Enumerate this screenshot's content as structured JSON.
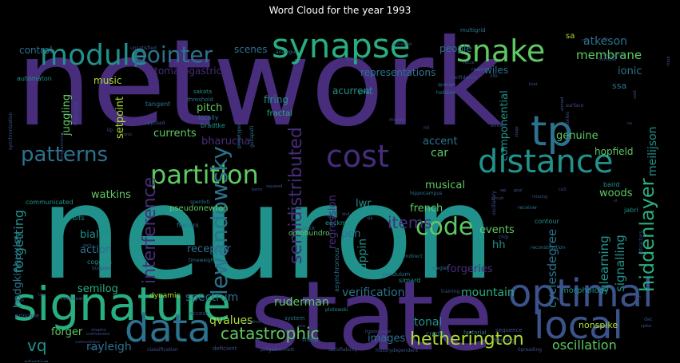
{
  "title": "Word Cloud for the year 1993",
  "palette": {
    "purple": "#472d7b",
    "darkblue": "#3b528b",
    "blue": "#2c728e",
    "teal": "#21918c",
    "green": "#28ae80",
    "lightgreen": "#5ec962",
    "yellowgreen": "#addc30",
    "dark": "#3e2b5e"
  },
  "words": [
    {
      "text": "network",
      "color": "purple",
      "weight": 100
    },
    {
      "text": "neuron",
      "color": "teal",
      "weight": 98
    },
    {
      "text": "state",
      "color": "purple",
      "weight": 72
    },
    {
      "text": "signature",
      "color": "green",
      "weight": 40
    },
    {
      "text": "optimal",
      "color": "darkblue",
      "weight": 36
    },
    {
      "text": "data",
      "color": "blue",
      "weight": 35
    },
    {
      "text": "local",
      "color": "darkblue",
      "weight": 34
    },
    {
      "text": "synapse",
      "color": "green",
      "weight": 30
    },
    {
      "text": "snake",
      "color": "lightgreen",
      "weight": 27
    },
    {
      "text": "tp",
      "color": "blue",
      "weight": 30
    },
    {
      "text": "module",
      "color": "teal",
      "weight": 26
    },
    {
      "text": "pointer",
      "color": "blue",
      "weight": 23
    },
    {
      "text": "distance",
      "color": "teal",
      "weight": 25
    },
    {
      "text": "cost",
      "color": "purple",
      "weight": 24
    },
    {
      "text": "partition",
      "color": "lightgreen",
      "weight": 21
    },
    {
      "text": "patterns",
      "color": "blue",
      "weight": 20
    },
    {
      "text": "code",
      "color": "lightgreen",
      "weight": 21
    },
    {
      "text": "lewandowsky",
      "color": "blue",
      "weight": 18
    },
    {
      "text": "hiddenlayer",
      "color": "green",
      "weight": 17
    },
    {
      "text": "semidistributed",
      "color": "purple",
      "weight": 16
    },
    {
      "text": "hetherington",
      "color": "yellowgreen",
      "weight": 16
    },
    {
      "text": "catastrophic",
      "color": "lightgreen",
      "weight": 15
    },
    {
      "text": "interference",
      "color": "purple",
      "weight": 15
    },
    {
      "text": "vq",
      "color": "teal",
      "weight": 14
    },
    {
      "text": "items",
      "color": "purple",
      "weight": 14
    },
    {
      "text": "forgetting",
      "color": "teal",
      "weight": 12
    },
    {
      "text": "oscillation",
      "color": "lightgreen",
      "weight": 11
    },
    {
      "text": "cyclesdegree",
      "color": "blue",
      "weight": 11
    },
    {
      "text": "signalling",
      "color": "teal",
      "weight": 11
    },
    {
      "text": "qlearning",
      "color": "teal",
      "weight": 11
    },
    {
      "text": "hodgkinhuxley",
      "color": "blue",
      "weight": 10
    },
    {
      "text": "membrane",
      "color": "lightgreen",
      "weight": 10
    },
    {
      "text": "atkeson",
      "color": "blue",
      "weight": 10
    },
    {
      "text": "ionic",
      "color": "blue",
      "weight": 10
    },
    {
      "text": "meilijson",
      "color": "teal",
      "weight": 10
    },
    {
      "text": "rayleigh",
      "color": "blue",
      "weight": 10
    },
    {
      "text": "qvalues",
      "color": "yellowgreen",
      "weight": 10
    },
    {
      "text": "spectrum",
      "color": "blue",
      "weight": 10
    },
    {
      "text": "ruderman",
      "color": "lightgreen",
      "weight": 10
    },
    {
      "text": "verification",
      "color": "blue",
      "weight": 10
    },
    {
      "text": "mountain",
      "color": "green",
      "weight": 10
    },
    {
      "text": "tonal",
      "color": "teal",
      "weight": 10
    },
    {
      "text": "images",
      "color": "blue",
      "weight": 9
    },
    {
      "text": "forger",
      "color": "lightgreen",
      "weight": 9
    },
    {
      "text": "forgeries",
      "color": "purple",
      "weight": 9
    },
    {
      "text": "bialek",
      "color": "teal",
      "weight": 9
    },
    {
      "text": "action",
      "color": "blue",
      "weight": 9
    },
    {
      "text": "receptor",
      "color": "blue",
      "weight": 9
    },
    {
      "text": "semilog",
      "color": "green",
      "weight": 9
    },
    {
      "text": "events",
      "color": "lightgreen",
      "weight": 9
    },
    {
      "text": "hh",
      "color": "teal",
      "weight": 9
    },
    {
      "text": "pen",
      "color": "blue",
      "weight": 9
    },
    {
      "text": "lwr",
      "color": "teal",
      "weight": 8
    },
    {
      "text": "ruppin",
      "color": "teal",
      "weight": 8
    },
    {
      "text": "regression",
      "color": "purple",
      "weight": 8
    },
    {
      "text": "french",
      "color": "lightgreen",
      "weight": 9
    },
    {
      "text": "musical",
      "color": "lightgreen",
      "weight": 8
    },
    {
      "text": "woods",
      "color": "lightgreen",
      "weight": 8
    },
    {
      "text": "componential",
      "color": "teal",
      "weight": 9
    },
    {
      "text": "car",
      "color": "lightgreen",
      "weight": 9
    },
    {
      "text": "accent",
      "color": "blue",
      "weight": 9
    },
    {
      "text": "genuine",
      "color": "lightgreen",
      "weight": 8
    },
    {
      "text": "hopfield",
      "color": "lightgreen",
      "weight": 8
    },
    {
      "text": "watkins",
      "color": "lightgreen",
      "weight": 9
    },
    {
      "text": "juggling",
      "color": "lightgreen",
      "weight": 9
    },
    {
      "text": "currents",
      "color": "lightgreen",
      "weight": 9
    },
    {
      "text": "setpoint",
      "color": "yellowgreen",
      "weight": 9
    },
    {
      "text": "pitch",
      "color": "lightgreen",
      "weight": 9
    },
    {
      "text": "bharucha",
      "color": "purple",
      "weight": 9
    },
    {
      "text": "firing",
      "color": "teal",
      "weight": 8
    },
    {
      "text": "scenes",
      "color": "blue",
      "weight": 8
    },
    {
      "text": "music",
      "color": "yellowgreen",
      "weight": 8
    },
    {
      "text": "stomatogastric",
      "color": "purple",
      "weight": 8
    },
    {
      "text": "representations",
      "color": "blue",
      "weight": 8
    },
    {
      "text": "acurrent",
      "color": "teal",
      "weight": 8
    },
    {
      "text": "people",
      "color": "blue",
      "weight": 8
    },
    {
      "text": "wiles",
      "color": "blue",
      "weight": 8
    },
    {
      "text": "control",
      "color": "blue",
      "weight": 8
    },
    {
      "text": "sa",
      "color": "yellowgreen",
      "weight": 8
    },
    {
      "text": "ssa",
      "color": "blue",
      "weight": 8
    },
    {
      "text": "pseudonewton",
      "color": "lightgreen",
      "weight": 7
    },
    {
      "text": "fractal",
      "color": "green",
      "weight": 7
    },
    {
      "text": "dynamic",
      "color": "yellowgreen",
      "weight": 7
    },
    {
      "text": "nonspike",
      "color": "yellowgreen",
      "weight": 8
    },
    {
      "text": "morphology",
      "color": "teal",
      "weight": 7
    },
    {
      "text": "contour",
      "color": "teal",
      "weight": 6
    },
    {
      "text": "baird",
      "color": "teal",
      "weight": 6
    },
    {
      "text": "jabri",
      "color": "teal",
      "weight": 6
    },
    {
      "text": "coggins",
      "color": "teal",
      "weight": 6
    },
    {
      "text": "omohundro",
      "color": "lightgreen",
      "weight": 6
    },
    {
      "text": "eeckman",
      "color": "teal",
      "weight": 6
    },
    {
      "text": "simard",
      "color": "teal",
      "weight": 6
    },
    {
      "text": "credit",
      "color": "blue",
      "weight": 6
    },
    {
      "text": "tresp",
      "color": "blue",
      "weight": 6
    },
    {
      "text": "pwi",
      "color": "teal",
      "weight": 6
    },
    {
      "text": "tangent",
      "color": "blue",
      "weight": 6
    },
    {
      "text": "communicated",
      "color": "teal",
      "weight": 6
    },
    {
      "text": "bits",
      "color": "teal",
      "weight": 6
    },
    {
      "text": "bradtke",
      "color": "teal",
      "weight": 6
    },
    {
      "text": "fraconi",
      "color": "blue",
      "weight": 6
    },
    {
      "text": "locally",
      "color": "blue",
      "weight": 6
    },
    {
      "text": "sakata",
      "color": "teal",
      "weight": 5
    },
    {
      "text": "threshold",
      "color": "blue",
      "weight": 5
    },
    {
      "text": "automaton",
      "color": "teal",
      "weight": 6
    },
    {
      "text": "unsatisfied",
      "color": "darkblue",
      "weight": 4
    },
    {
      "text": "multigrid",
      "color": "blue",
      "weight": 5
    },
    {
      "text": "confidence",
      "color": "darkblue",
      "weight": 5
    },
    {
      "text": "asynchronous",
      "color": "blue",
      "weight": 6
    },
    {
      "text": "pendulum",
      "color": "blue",
      "weight": 5
    },
    {
      "text": "factorial",
      "color": "blue",
      "weight": 5
    },
    {
      "text": "filtering",
      "color": "darkblue",
      "weight": 5
    },
    {
      "text": "sequence",
      "color": "darkblue",
      "weight": 5
    },
    {
      "text": "adaptive",
      "color": "blue",
      "weight": 5
    },
    {
      "text": "classification",
      "color": "darkblue",
      "weight": 5
    },
    {
      "text": "deficient",
      "color": "darkblue",
      "weight": 5
    },
    {
      "text": "prilgelbennett",
      "color": "darkblue",
      "weight": 5
    },
    {
      "text": "satisfiability",
      "color": "darkblue",
      "weight": 4
    },
    {
      "text": "historydependent",
      "color": "darkblue",
      "weight": 5
    },
    {
      "text": "lipreading",
      "color": "darkblue",
      "weight": 5
    },
    {
      "text": "hippocampal",
      "color": "darkblue",
      "weight": 4
    },
    {
      "text": "plutowski",
      "color": "teal",
      "weight": 4
    },
    {
      "text": "access",
      "color": "darkblue",
      "weight": 5
    },
    {
      "text": "system",
      "color": "blue",
      "weight": 5
    },
    {
      "text": "principle",
      "color": "darkblue",
      "weight": 5
    },
    {
      "text": "nonlinear",
      "color": "darkblue",
      "weight": 4
    },
    {
      "text": "timeweighted",
      "color": "blue",
      "weight": 4
    },
    {
      "text": "sperduti",
      "color": "blue",
      "weight": 4
    },
    {
      "text": "bregler",
      "color": "blue",
      "weight": 4
    },
    {
      "text": "indirect",
      "color": "blue",
      "weight": 4
    },
    {
      "text": "gluck",
      "color": "blue",
      "weight": 4
    },
    {
      "text": "reconstruction",
      "color": "blue",
      "weight": 4
    },
    {
      "text": "receiver",
      "color": "blue",
      "weight": 4
    },
    {
      "text": "hippocampus",
      "color": "blue",
      "weight": 4
    },
    {
      "text": "queries",
      "color": "blue",
      "weight": 4
    },
    {
      "text": "hebbian",
      "color": "blue",
      "weight": 4
    },
    {
      "text": "raam",
      "color": "blue",
      "weight": 4
    },
    {
      "text": "synchronization",
      "color": "darkblue",
      "weight": 4
    },
    {
      "text": "trajectory",
      "color": "darkblue",
      "weight": 4
    },
    {
      "text": "programming",
      "color": "darkblue",
      "weight": 4
    },
    {
      "text": "elman",
      "color": "darkblue",
      "weight": 4
    },
    {
      "text": "gullapalli",
      "color": "blue",
      "weight": 4
    },
    {
      "text": "prototypes",
      "color": "blue",
      "weight": 4
    },
    {
      "text": "analogue",
      "color": "blue",
      "weight": 5
    },
    {
      "text": "attractors",
      "color": "darkblue",
      "weight": 4
    },
    {
      "text": "oscillatory",
      "color": "darkblue",
      "weight": 4
    },
    {
      "text": "chip",
      "color": "darkblue",
      "weight": 4
    },
    {
      "text": "training",
      "color": "darkblue",
      "weight": 4
    },
    {
      "text": "mume",
      "color": "darkblue",
      "weight": 4
    },
    {
      "text": "nil",
      "color": "darkblue",
      "weight": 4
    },
    {
      "text": "burgess",
      "color": "darkblue",
      "weight": 4
    },
    {
      "text": "surface",
      "color": "darkblue",
      "weight": 4
    },
    {
      "text": "trajectories",
      "color": "darkblue",
      "weight": 4
    },
    {
      "text": "kirkpatrick",
      "color": "darkblue",
      "weight": 4
    },
    {
      "text": "formulae",
      "color": "darkblue",
      "weight": 4
    },
    {
      "text": "input",
      "color": "darkblue",
      "weight": 4
    },
    {
      "text": "dac",
      "color": "darkblue",
      "weight": 4
    },
    {
      "text": "spike",
      "color": "darkblue",
      "weight": 4
    },
    {
      "text": "ahmad",
      "color": "darkblue",
      "weight": 4
    },
    {
      "text": "stage",
      "color": "darkblue",
      "weight": 4
    },
    {
      "text": "recce",
      "color": "darkblue",
      "weight": 4
    },
    {
      "text": "zn",
      "color": "darkblue",
      "weight": 4
    },
    {
      "text": "pca",
      "color": "darkblue",
      "weight": 4
    },
    {
      "text": "goal",
      "color": "darkblue",
      "weight": 4
    },
    {
      "text": "circuit",
      "color": "darkblue",
      "weight": 4
    },
    {
      "text": "missing",
      "color": "darkblue",
      "weight": 4
    },
    {
      "text": "ca3",
      "color": "darkblue",
      "weight": 4
    },
    {
      "text": "vi",
      "color": "darkblue",
      "weight": 4
    },
    {
      "text": "dn4",
      "color": "darkblue",
      "weight": 4
    },
    {
      "text": "oja",
      "color": "darkblue",
      "weight": 4
    },
    {
      "text": "granger",
      "color": "darkblue",
      "weight": 4
    },
    {
      "text": "seg",
      "color": "darkblue",
      "weight": 4
    },
    {
      "text": "squared",
      "color": "darkblue",
      "weight": 4
    },
    {
      "text": "barto",
      "color": "darkblue",
      "weight": 4
    },
    {
      "text": "ksat",
      "color": "darkblue",
      "weight": 4
    },
    {
      "text": "tms",
      "color": "darkblue",
      "weight": 4
    },
    {
      "text": "gain",
      "color": "darkblue",
      "weight": 4
    },
    {
      "text": "hasselmo",
      "color": "darkblue",
      "weight": 4
    },
    {
      "text": "costiveness",
      "color": "darkblue",
      "weight": 4
    },
    {
      "text": "costlevalidation",
      "color": "darkblue",
      "weight": 4
    },
    {
      "text": "enerus",
      "color": "darkblue",
      "weight": 4
    },
    {
      "text": "shapiro",
      "color": "darkblue",
      "weight": 4
    },
    {
      "text": "annealed",
      "color": "darkblue",
      "weight": 4
    },
    {
      "text": "shunting",
      "color": "darkblue",
      "weight": 4
    },
    {
      "text": "opposed",
      "color": "darkblue",
      "weight": 4
    },
    {
      "text": "lip",
      "color": "darkblue",
      "weight": 4
    },
    {
      "text": "tonic",
      "color": "darkblue",
      "weight": 4
    },
    {
      "text": "wp",
      "color": "darkblue",
      "weight": 4
    },
    {
      "text": "void",
      "color": "darkblue",
      "weight": 4
    },
    {
      "text": "ca",
      "color": "darkblue",
      "weight": 4
    },
    {
      "text": "em",
      "color": "darkblue",
      "weight": 4
    },
    {
      "text": "lgn",
      "color": "darkblue",
      "weight": 4
    },
    {
      "text": "28c",
      "color": "darkblue",
      "weight": 4
    },
    {
      "text": "tmo",
      "color": "darkblue",
      "weight": 4
    },
    {
      "text": "zm",
      "color": "darkblue",
      "weight": 4
    }
  ]
}
